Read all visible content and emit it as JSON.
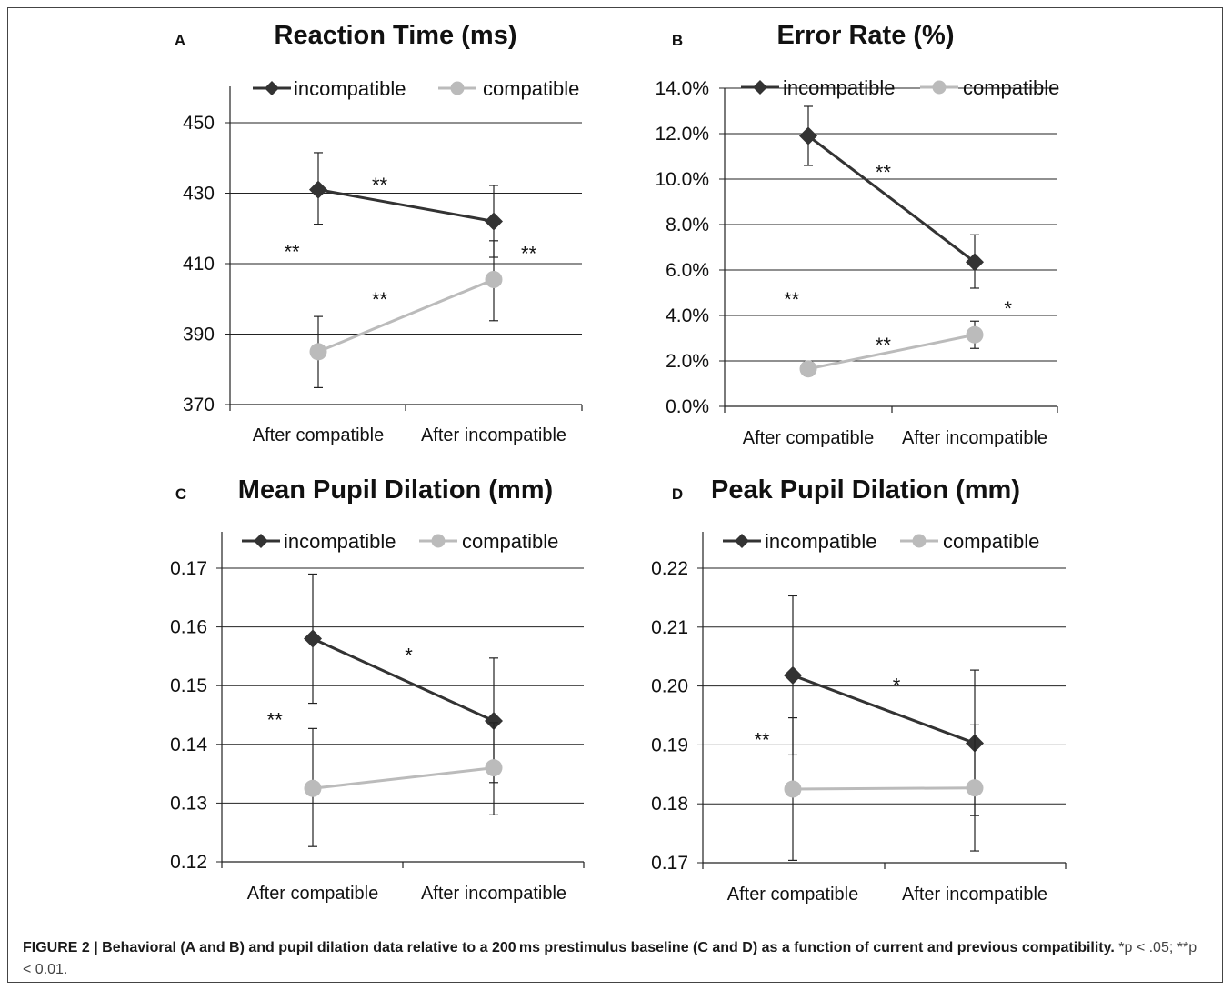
{
  "chart_data": [
    {
      "type": "line",
      "panel_label": "A",
      "title": "Reaction Time (ms)",
      "categories": [
        "After compatible",
        "After incompatible"
      ],
      "ylim": [
        370,
        450
      ],
      "yticks": [
        370,
        390,
        410,
        430,
        450
      ],
      "ytick_format": "int",
      "grid": true,
      "legend_position": "top",
      "series": [
        {
          "name": "incompatible",
          "marker": "diamond",
          "color": "#333333",
          "values": [
            431,
            422
          ],
          "err_hi": [
            441.5,
            432.2
          ],
          "err_lo": [
            421.2,
            411.8
          ]
        },
        {
          "name": "compatible",
          "marker": "circle",
          "color": "#bbbbbb",
          "values": [
            385,
            405.5
          ],
          "err_hi": [
            395,
            416.5
          ],
          "err_lo": [
            374.8,
            393.8
          ]
        }
      ],
      "annotations": [
        {
          "text": "**",
          "x": 0.35,
          "y": 433
        },
        {
          "text": "**",
          "x": -0.15,
          "y": 414
        },
        {
          "text": "**",
          "x": 1.2,
          "y": 413.5
        },
        {
          "text": "**",
          "x": 0.35,
          "y": 400.5
        }
      ]
    },
    {
      "type": "line",
      "panel_label": "B",
      "title": "Error Rate (%)",
      "categories": [
        "After compatible",
        "After incompatible"
      ],
      "ylim": [
        0,
        14
      ],
      "yticks": [
        0,
        2,
        4,
        6,
        8,
        10,
        12,
        14
      ],
      "ytick_format": "pct",
      "grid": true,
      "legend_position": "top",
      "series": [
        {
          "name": "incompatible",
          "marker": "diamond",
          "color": "#333333",
          "values": [
            11.9,
            6.35
          ],
          "err_hi": [
            13.2,
            7.55
          ],
          "err_lo": [
            10.6,
            5.2
          ]
        },
        {
          "name": "compatible",
          "marker": "circle",
          "color": "#bbbbbb",
          "values": [
            1.65,
            3.15
          ],
          "err_hi": [
            1.95,
            3.75
          ],
          "err_lo": [
            1.35,
            2.55
          ]
        }
      ],
      "annotations": [
        {
          "text": "**",
          "x": 0.45,
          "y": 10.4
        },
        {
          "text": "**",
          "x": -0.1,
          "y": 4.8
        },
        {
          "text": "*",
          "x": 1.2,
          "y": 4.4
        },
        {
          "text": "**",
          "x": 0.45,
          "y": 2.8
        }
      ]
    },
    {
      "type": "line",
      "panel_label": "C",
      "title": "Mean Pupil Dilation (mm)",
      "categories": [
        "After compatible",
        "After incompatible"
      ],
      "ylim": [
        0.12,
        0.17
      ],
      "yticks": [
        0.12,
        0.13,
        0.14,
        0.15,
        0.16,
        0.17
      ],
      "ytick_format": "2dp",
      "grid": true,
      "legend_position": "top",
      "series": [
        {
          "name": "incompatible",
          "marker": "diamond",
          "color": "#333333",
          "values": [
            0.158,
            0.144
          ],
          "err_hi": [
            0.169,
            0.1547
          ],
          "err_lo": [
            0.147,
            0.1335
          ]
        },
        {
          "name": "compatible",
          "marker": "circle",
          "color": "#bbbbbb",
          "values": [
            0.1325,
            0.136
          ],
          "err_hi": [
            0.1427,
            0.1437
          ],
          "err_lo": [
            0.1226,
            0.128
          ]
        }
      ],
      "annotations": [
        {
          "text": "*",
          "x": 0.53,
          "y": 0.1555
        },
        {
          "text": "**",
          "x": -0.21,
          "y": 0.1445
        }
      ]
    },
    {
      "type": "line",
      "panel_label": "D",
      "title": "Peak Pupil Dilation (mm)",
      "categories": [
        "After compatible",
        "After incompatible"
      ],
      "ylim": [
        0.17,
        0.22
      ],
      "yticks": [
        0.17,
        0.18,
        0.19,
        0.2,
        0.21,
        0.22
      ],
      "ytick_format": "2dp",
      "grid": true,
      "legend_position": "top",
      "series": [
        {
          "name": "incompatible",
          "marker": "diamond",
          "color": "#333333",
          "values": [
            0.2018,
            0.1903
          ],
          "err_hi": [
            0.2153,
            0.2027
          ],
          "err_lo": [
            0.1883,
            0.178
          ]
        },
        {
          "name": "compatible",
          "marker": "circle",
          "color": "#bbbbbb",
          "values": [
            0.1825,
            0.1827
          ],
          "err_hi": [
            0.1946,
            0.1934
          ],
          "err_lo": [
            0.1704,
            0.172
          ]
        }
      ],
      "annotations": [
        {
          "text": "*",
          "x": 0.57,
          "y": 0.2005
        },
        {
          "text": "**",
          "x": -0.17,
          "y": 0.1912
        }
      ]
    }
  ],
  "caption": {
    "bold": "FIGURE 2 | Behavioral (A and B) and pupil dilation data relative to a 200 ms prestimulus baseline (C and D) as a function of current and previous compatibility.",
    "stats": " *p < .05; **p < 0.01."
  }
}
